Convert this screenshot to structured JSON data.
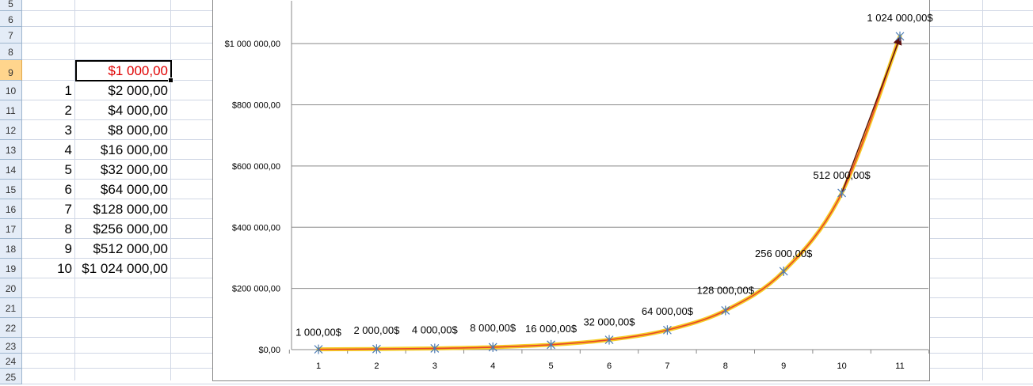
{
  "sheet": {
    "row_numbers": [
      "5",
      "6",
      "7",
      "8",
      "9",
      "10",
      "11",
      "12",
      "13",
      "14",
      "15",
      "16",
      "17",
      "18",
      "19",
      "20",
      "21",
      "22",
      "23",
      "24",
      "25"
    ],
    "active_value": "$1 000,00",
    "active_color": "#e00000",
    "indices": [
      "1",
      "2",
      "3",
      "4",
      "5",
      "6",
      "7",
      "8",
      "9",
      "10"
    ],
    "values": [
      "$2 000,00",
      "$4 000,00",
      "$8 000,00",
      "$16 000,00",
      "$32 000,00",
      "$64 000,00",
      "$128 000,00",
      "$256 000,00",
      "$512 000,00",
      "$1 024 000,00"
    ]
  },
  "chart_data": {
    "type": "line",
    "x": [
      1,
      2,
      3,
      4,
      5,
      6,
      7,
      8,
      9,
      10,
      11
    ],
    "series": [
      {
        "values": [
          1000,
          2000,
          4000,
          8000,
          16000,
          32000,
          64000,
          128000,
          256000,
          512000,
          1024000
        ]
      }
    ],
    "data_labels": [
      "1 000,00$",
      "2 000,00$",
      "4 000,00$",
      "8 000,00$",
      "16 000,00$",
      "32 000,00$",
      "64 000,00$",
      "128 000,00$",
      "256 000,00$",
      "512 000,00$",
      "1 024 000,00$"
    ],
    "y_tick_values": [
      0,
      200000,
      400000,
      600000,
      800000,
      1000000
    ],
    "y_tick_labels": [
      "$0,00",
      "$200 000,00",
      "$400 000,00",
      "$600 000,00",
      "$800 000,00",
      "$1 000 000,00"
    ],
    "x_tick_labels": [
      "1",
      "2",
      "3",
      "4",
      "5",
      "6",
      "7",
      "8",
      "9",
      "10",
      "11"
    ],
    "ylim": [
      0,
      1140000
    ],
    "grid": "horizontal",
    "title": "",
    "xlabel": "",
    "ylabel": "",
    "colors": {
      "trend": "#e8452a",
      "trend_glow": "#f5c400",
      "marker": "#4a7ab5",
      "arrow": "#5a1010",
      "gridline": "#888888"
    }
  }
}
